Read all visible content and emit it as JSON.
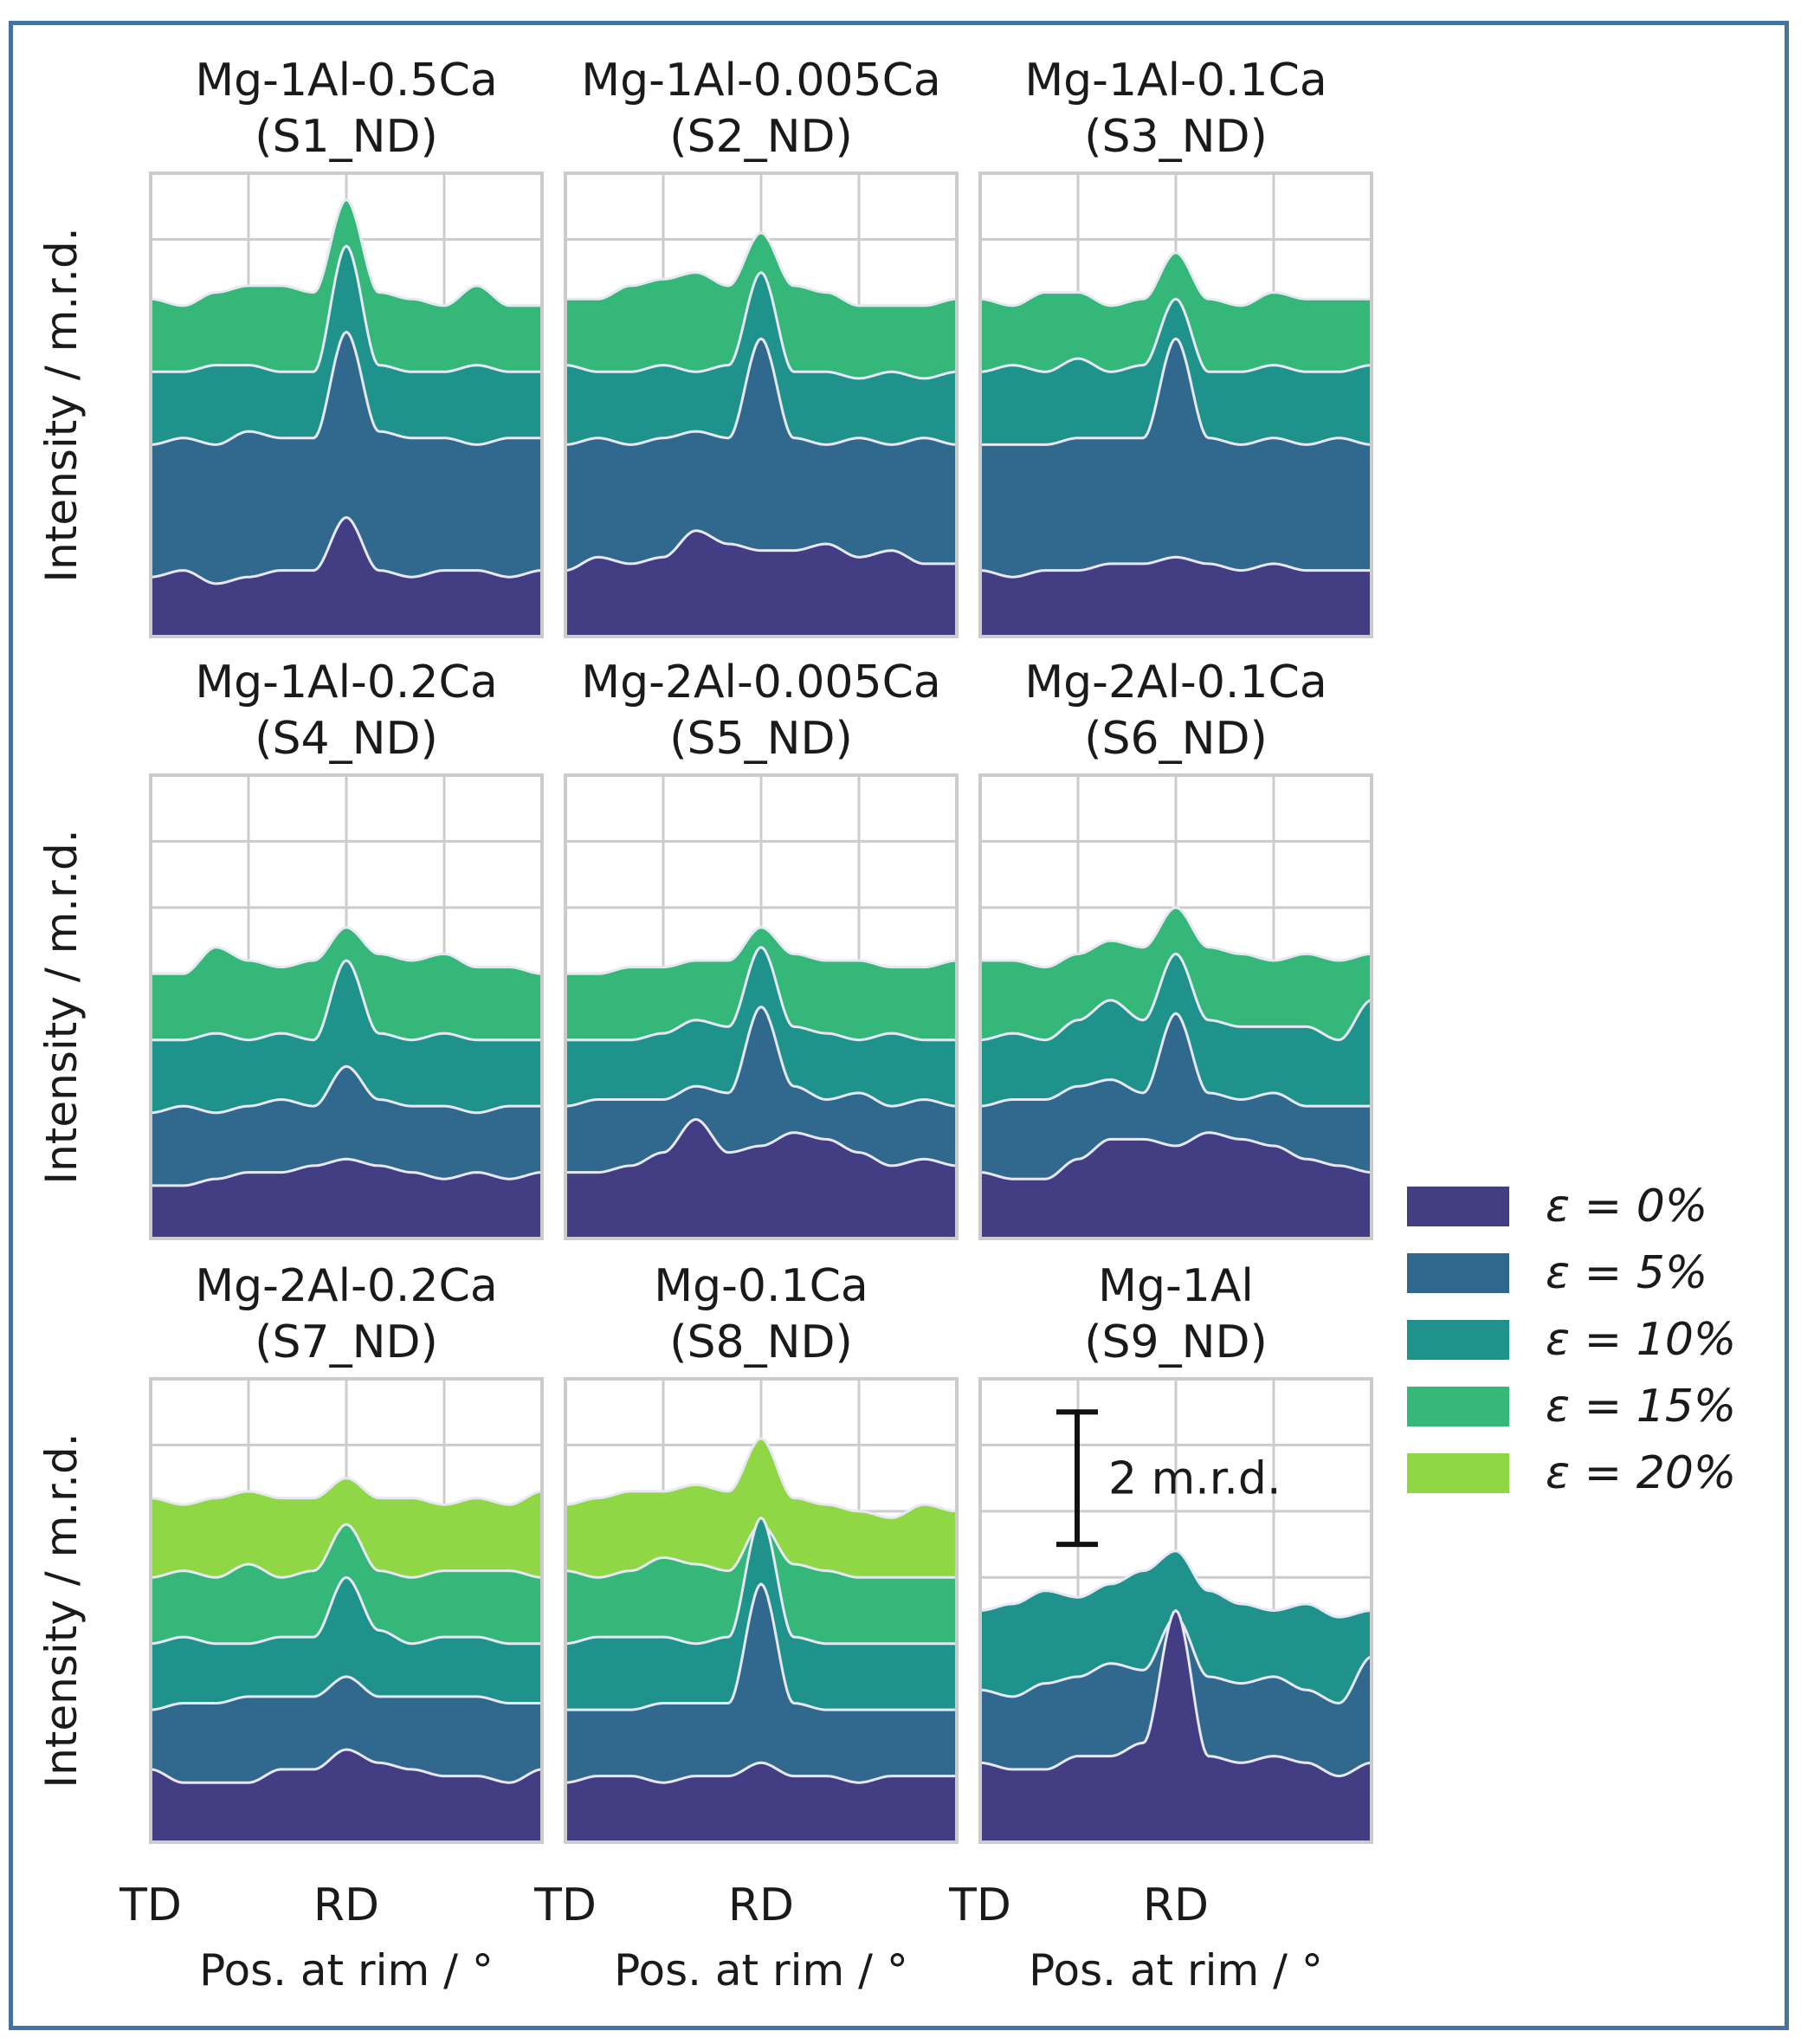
{
  "chart_data": {
    "type": "area",
    "description_free": true,
    "ylabel": "Intensity / m.r.d.",
    "xlabel": "Pos. at rim / °",
    "x_ticks": [
      "TD",
      "RD"
    ],
    "grid": true,
    "scale_bar": {
      "value": 2,
      "label": "2 m.r.d."
    },
    "legend": {
      "placement": "right",
      "entries": [
        {
          "label": "ε = 0%",
          "color": "#433d84"
        },
        {
          "label": "ε = 5%",
          "color": "#31688e"
        },
        {
          "label": "ε = 10%",
          "color": "#1f928b"
        },
        {
          "label": "ε = 15%",
          "color": "#35b779"
        },
        {
          "label": "ε = 20%",
          "color": "#8fd744"
        }
      ]
    },
    "x": [
      0,
      15,
      30,
      45,
      60,
      75,
      90,
      105,
      120,
      135,
      150,
      165,
      180
    ],
    "peaks": [
      {
        "center": 30,
        "width": 3
      },
      {
        "center": 90,
        "width": 4
      },
      {
        "center": 150,
        "width": 3
      }
    ],
    "panels": [
      {
        "title_line1": "Mg-1Al-0.5Ca",
        "title_line2": "(S1_ND)",
        "series": [
          {
            "strain": "0%",
            "baseline": 1.0,
            "values": [
              0.9,
              1.0,
              0.8,
              0.9,
              1.0,
              1.0,
              1.8,
              1.0,
              0.9,
              1.0,
              1.0,
              0.9,
              1.0
            ]
          },
          {
            "strain": "5%",
            "baseline": 2.0,
            "values": [
              2.9,
              3.0,
              2.9,
              3.1,
              3.0,
              3.0,
              4.6,
              3.1,
              3.0,
              3.0,
              2.9,
              3.0,
              3.0
            ]
          },
          {
            "strain": "10%",
            "baseline": 3.1,
            "values": [
              4.0,
              4.0,
              4.1,
              4.1,
              4.0,
              4.0,
              5.9,
              4.1,
              4.0,
              4.0,
              4.1,
              4.0,
              4.0
            ]
          },
          {
            "strain": "15%",
            "baseline": 4.1,
            "values": [
              5.1,
              5.0,
              5.2,
              5.3,
              5.3,
              5.2,
              6.6,
              5.2,
              5.1,
              5.0,
              5.3,
              5.0,
              5.0
            ]
          }
        ]
      },
      {
        "title_line1": "Mg-1Al-0.005Ca",
        "title_line2": "(S2_ND)",
        "series": [
          {
            "strain": "0%",
            "baseline": 1.0,
            "values": [
              1.0,
              1.2,
              1.1,
              1.2,
              1.6,
              1.4,
              1.3,
              1.3,
              1.4,
              1.2,
              1.3,
              1.1,
              1.1
            ]
          },
          {
            "strain": "5%",
            "baseline": 2.0,
            "values": [
              2.9,
              3.0,
              2.9,
              3.0,
              3.1,
              3.0,
              4.5,
              3.0,
              2.9,
              3.0,
              2.9,
              3.0,
              2.9
            ]
          },
          {
            "strain": "10%",
            "baseline": 3.1,
            "values": [
              4.1,
              4.0,
              4.0,
              4.1,
              4.0,
              4.1,
              5.5,
              4.0,
              4.0,
              3.9,
              4.0,
              3.9,
              4.0
            ]
          },
          {
            "strain": "15%",
            "baseline": 4.1,
            "values": [
              5.1,
              5.1,
              5.3,
              5.4,
              5.5,
              5.3,
              6.1,
              5.3,
              5.2,
              5.0,
              5.0,
              5.0,
              5.1
            ]
          }
        ]
      },
      {
        "title_line1": "Mg-1Al-0.1Ca",
        "title_line2": "(S3_ND)",
        "series": [
          {
            "strain": "0%",
            "baseline": 1.0,
            "values": [
              1.0,
              0.9,
              1.0,
              1.0,
              1.1,
              1.1,
              1.2,
              1.1,
              1.0,
              1.1,
              1.0,
              1.0,
              1.0
            ]
          },
          {
            "strain": "5%",
            "baseline": 1.9,
            "values": [
              2.9,
              2.9,
              2.9,
              3.0,
              3.0,
              3.0,
              4.5,
              3.0,
              2.9,
              3.0,
              2.9,
              3.0,
              2.9
            ]
          },
          {
            "strain": "10%",
            "baseline": 3.0,
            "values": [
              4.0,
              4.1,
              4.0,
              4.2,
              4.0,
              4.1,
              5.1,
              4.0,
              4.0,
              4.1,
              4.0,
              4.0,
              4.1
            ]
          },
          {
            "strain": "15%",
            "baseline": 4.0,
            "values": [
              5.1,
              5.0,
              5.2,
              5.2,
              5.0,
              5.1,
              5.8,
              5.1,
              5.0,
              5.2,
              5.1,
              5.1,
              5.1
            ]
          }
        ]
      },
      {
        "title_line1": "Mg-1Al-0.2Ca",
        "title_line2": "(S4_ND)",
        "series": [
          {
            "strain": "0%",
            "baseline": 1.0,
            "values": [
              0.8,
              0.8,
              0.9,
              1.0,
              1.0,
              1.1,
              1.2,
              1.1,
              1.0,
              0.9,
              1.0,
              0.9,
              1.0
            ]
          },
          {
            "strain": "5%",
            "baseline": 2.0,
            "values": [
              1.9,
              2.0,
              1.9,
              2.0,
              2.1,
              2.0,
              2.6,
              2.1,
              2.0,
              2.0,
              1.9,
              2.0,
              2.0
            ]
          },
          {
            "strain": "10%",
            "baseline": 3.0,
            "values": [
              3.0,
              3.0,
              3.1,
              3.0,
              3.1,
              3.0,
              4.2,
              3.1,
              3.0,
              3.1,
              3.0,
              3.0,
              3.0
            ]
          },
          {
            "strain": "15%",
            "baseline": 4.0,
            "values": [
              4.0,
              4.0,
              4.4,
              4.2,
              4.1,
              4.2,
              4.7,
              4.3,
              4.2,
              4.3,
              4.1,
              4.1,
              4.0
            ]
          }
        ]
      },
      {
        "title_line1": "Mg-2Al-0.005Ca",
        "title_line2": "(S5_ND)",
        "series": [
          {
            "strain": "0%",
            "baseline": 1.0,
            "values": [
              1.0,
              1.0,
              1.1,
              1.3,
              1.8,
              1.3,
              1.4,
              1.6,
              1.5,
              1.3,
              1.1,
              1.2,
              1.1
            ]
          },
          {
            "strain": "5%",
            "baseline": 2.0,
            "values": [
              2.0,
              2.1,
              2.1,
              2.1,
              2.3,
              2.2,
              3.5,
              2.3,
              2.1,
              2.2,
              2.0,
              2.1,
              2.0
            ]
          },
          {
            "strain": "10%",
            "baseline": 3.0,
            "values": [
              3.0,
              3.0,
              3.0,
              3.1,
              3.3,
              3.2,
              4.4,
              3.2,
              3.1,
              3.0,
              3.1,
              3.0,
              3.0
            ]
          },
          {
            "strain": "15%",
            "baseline": 4.0,
            "values": [
              4.0,
              4.0,
              4.1,
              4.1,
              4.2,
              4.2,
              4.7,
              4.3,
              4.2,
              4.2,
              4.1,
              4.1,
              4.2
            ]
          }
        ]
      },
      {
        "title_line1": "Mg-2Al-0.1Ca",
        "title_line2": "(S6_ND)",
        "series": [
          {
            "strain": "0%",
            "baseline": 1.0,
            "values": [
              1.0,
              0.9,
              0.9,
              1.2,
              1.5,
              1.5,
              1.4,
              1.6,
              1.5,
              1.4,
              1.2,
              1.1,
              1.0
            ]
          },
          {
            "strain": "5%",
            "baseline": 2.0,
            "values": [
              2.0,
              2.1,
              2.1,
              2.3,
              2.4,
              2.2,
              3.4,
              2.2,
              2.1,
              2.2,
              2.0,
              2.0,
              2.0
            ]
          },
          {
            "strain": "10%",
            "baseline": 3.0,
            "values": [
              3.0,
              3.1,
              3.0,
              3.3,
              3.6,
              3.3,
              4.3,
              3.3,
              3.2,
              3.2,
              3.2,
              3.0,
              3.6
            ]
          },
          {
            "strain": "15%",
            "baseline": 4.0,
            "values": [
              4.2,
              4.2,
              4.1,
              4.3,
              4.5,
              4.4,
              5.0,
              4.4,
              4.3,
              4.2,
              4.3,
              4.2,
              4.3
            ]
          }
        ]
      },
      {
        "title_line1": "Mg-2Al-0.2Ca",
        "title_line2": "(S7_ND)",
        "series": [
          {
            "strain": "0%",
            "baseline": 1.0,
            "values": [
              1.1,
              0.9,
              0.9,
              0.9,
              1.1,
              1.1,
              1.4,
              1.2,
              1.1,
              1.0,
              1.0,
              0.9,
              1.1
            ]
          },
          {
            "strain": "5%",
            "baseline": 2.0,
            "values": [
              2.0,
              2.1,
              2.1,
              2.2,
              2.2,
              2.2,
              2.5,
              2.2,
              2.2,
              2.2,
              2.2,
              2.1,
              2.1
            ]
          },
          {
            "strain": "10%",
            "baseline": 3.0,
            "values": [
              3.0,
              3.1,
              3.0,
              3.0,
              3.1,
              3.1,
              4.0,
              3.2,
              3.0,
              3.1,
              3.1,
              3.0,
              3.0
            ]
          },
          {
            "strain": "15%",
            "baseline": 4.0,
            "values": [
              4.0,
              4.1,
              4.0,
              4.2,
              4.0,
              4.1,
              4.8,
              4.1,
              4.0,
              4.1,
              4.1,
              4.1,
              4.0
            ]
          },
          {
            "strain": "20%",
            "baseline": 5.0,
            "values": [
              5.2,
              5.1,
              5.2,
              5.3,
              5.2,
              5.2,
              5.5,
              5.2,
              5.2,
              5.1,
              5.2,
              5.1,
              5.3
            ]
          }
        ]
      },
      {
        "title_line1": "Mg-0.1Ca",
        "title_line2": "(S8_ND)",
        "series": [
          {
            "strain": "0%",
            "baseline": 1.0,
            "values": [
              0.9,
              1.0,
              1.0,
              0.9,
              1.0,
              1.0,
              1.2,
              1.0,
              1.0,
              0.9,
              1.0,
              1.0,
              1.0
            ]
          },
          {
            "strain": "5%",
            "baseline": 2.0,
            "values": [
              2.0,
              2.0,
              2.0,
              2.1,
              2.1,
              2.1,
              3.9,
              2.1,
              2.0,
              2.0,
              2.0,
              2.0,
              2.0
            ]
          },
          {
            "strain": "10%",
            "baseline": 3.0,
            "values": [
              3.0,
              3.1,
              3.1,
              3.1,
              3.0,
              3.1,
              4.9,
              3.1,
              3.0,
              3.0,
              3.0,
              3.0,
              3.0
            ]
          },
          {
            "strain": "15%",
            "baseline": 4.0,
            "values": [
              4.1,
              4.0,
              4.1,
              4.3,
              4.2,
              4.1,
              4.8,
              4.2,
              4.1,
              4.0,
              4.0,
              4.0,
              4.0
            ]
          },
          {
            "strain": "20%",
            "baseline": 5.0,
            "values": [
              5.1,
              5.2,
              5.3,
              5.3,
              5.4,
              5.3,
              6.1,
              5.2,
              5.1,
              5.0,
              4.9,
              5.1,
              5.0
            ]
          }
        ]
      },
      {
        "title_line1": "Mg-1Al",
        "title_line2": "(S9_ND)",
        "series": [
          {
            "strain": "0%",
            "baseline": 1.0,
            "values": [
              1.2,
              1.1,
              1.1,
              1.3,
              1.3,
              1.5,
              3.5,
              1.3,
              1.2,
              1.3,
              1.2,
              1.0,
              1.2
            ]
          },
          {
            "strain": "5%",
            "baseline": 2.0,
            "values": [
              2.3,
              2.2,
              2.4,
              2.5,
              2.7,
              2.6,
              3.4,
              2.5,
              2.4,
              2.5,
              2.3,
              2.1,
              2.8
            ]
          },
          {
            "strain": "10%",
            "baseline": 3.0,
            "values": [
              3.5,
              3.6,
              3.8,
              3.7,
              3.9,
              4.1,
              4.4,
              3.8,
              3.6,
              3.5,
              3.6,
              3.4,
              3.5
            ]
          }
        ]
      }
    ]
  }
}
